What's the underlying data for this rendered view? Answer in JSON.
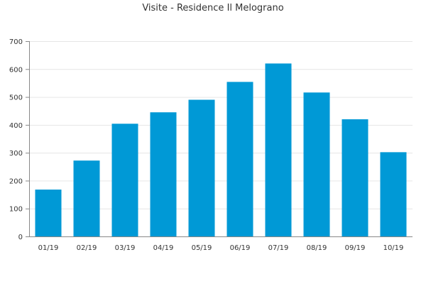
{
  "chart_data": {
    "type": "bar",
    "title": "Visite - Residence Il Melograno",
    "xlabel": "",
    "ylabel": "",
    "categories": [
      "01/19",
      "02/19",
      "03/19",
      "04/19",
      "05/19",
      "06/19",
      "07/19",
      "08/19",
      "09/19",
      "10/19"
    ],
    "values": [
      168,
      272,
      404,
      445,
      490,
      554,
      620,
      516,
      420,
      302
    ],
    "ylim": [
      0,
      700
    ],
    "yticks": [
      0,
      100,
      200,
      300,
      400,
      500,
      600,
      700
    ],
    "grid": true,
    "bar_color": "#0099d6",
    "grid_color": "#e6e6e6",
    "axis_color": "#888888"
  }
}
